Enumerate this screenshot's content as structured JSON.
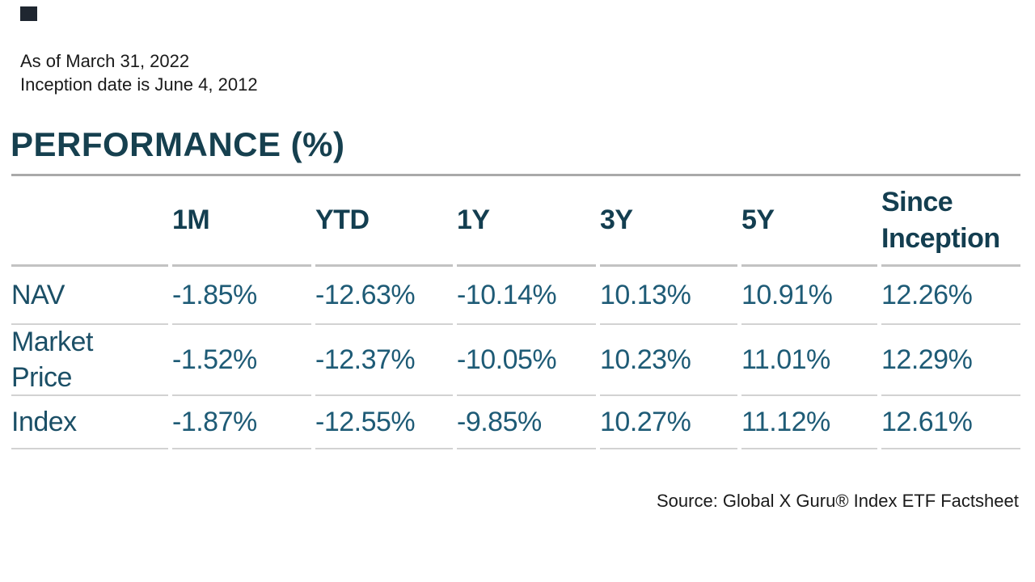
{
  "meta": {
    "as_of": "As of March 31, 2022",
    "inception": "Inception date is June 4, 2012"
  },
  "chart_data": {
    "type": "table",
    "title": "PERFORMANCE (%)",
    "columns": [
      "",
      "1M",
      "YTD",
      "1Y",
      "3Y",
      "5Y",
      "Since Inception"
    ],
    "rows": [
      {
        "label": "NAV",
        "values": [
          "-1.85%",
          "-12.63%",
          "-10.14%",
          "10.13%",
          "10.91%",
          "12.26%"
        ]
      },
      {
        "label": "Market Price",
        "values": [
          "-1.52%",
          "-12.37%",
          "-10.05%",
          "10.23%",
          "11.01%",
          "12.29%"
        ]
      },
      {
        "label": "Index",
        "values": [
          "-1.87%",
          "-12.55%",
          "-9.85%",
          "10.27%",
          "11.12%",
          "12.61%"
        ]
      }
    ]
  },
  "source_note": "Source: Global X Guru® Index ETF Factsheet",
  "colors": {
    "title_text": "#16404F",
    "header_text": "#133E50",
    "value_text": "#1E5B76",
    "label_text": "#1B4F66",
    "rule_dark": "#A9A9A9",
    "rule_light": "#D2D2D2",
    "corner_square": "#1F2630",
    "body_text": "#1A1A1A"
  }
}
